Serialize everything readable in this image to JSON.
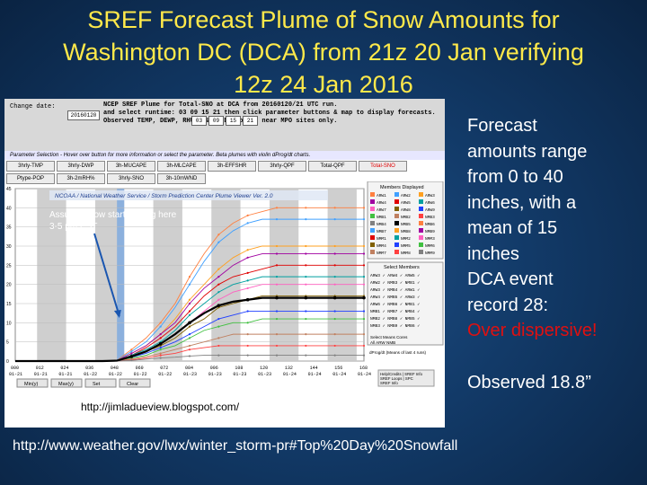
{
  "slide": {
    "title": "SREF Forecast Plume of Snow Amounts for\nWashington DC (DCA) from 21z 20 Jan verifying\n12z 24 Jan 2016",
    "bullets": [
      "Forecast",
      "amounts range",
      "from 0 to 40",
      "inches, with a",
      "mean of 15",
      "inches",
      "DCA event",
      "record 28:"
    ],
    "bullet_highlight": "Over dispersive!",
    "observed": "Observed 18.8”",
    "link": "http://www.weather.gov/lwx/winter_storm-pr#Top%20Day%20Snowfall",
    "source": "http://jimladueview.blogspot.com/"
  },
  "viewer": {
    "header": "NCEP SREF Plume for Total-SNO at DCA from 20160120/21 UTC run.\nand select runtime: 03 09 15 21 then click parameter buttons & map to display forecasts.\nObserved TEMP, DEWP, RHUM, & WIND plotted near MPO sites only.",
    "change_date_label": "Change date:",
    "date_value": "20160120",
    "runtimes": [
      "03",
      "09",
      "15",
      "21"
    ],
    "param_bar": "Parameter Selection - Hover over button for more information or select the parameter. Beta plumes with violin dProg/dt charts.",
    "tabs": [
      "3hrly-TMP",
      "3hrly-DWP",
      "3h-MUCAPE",
      "3h-MLCAPE",
      "3h-EFFSHR",
      "3hrly-QPF",
      "Total-QPF",
      "Total-SNO",
      "Ptype-POP",
      "3h-2mRH%",
      "3hrly-SNO",
      "3h-10mWND"
    ],
    "active_tab": "Total-SNO",
    "banner": "NCOAA / National Weather Service / Storm Prediction Center Plume Viewer Ver. 2.0",
    "annotation": [
      "Assume snow starts falling here",
      "3-5 pm EST"
    ],
    "members_title": "Members Displayed",
    "members": [
      "ARW1",
      "ARW2",
      "ARW3",
      "ARW4",
      "ARW5",
      "ARW6",
      "ARW7",
      "ARW8",
      "ARW9",
      "NMB1",
      "NMB2",
      "NMB3",
      "NMB4",
      "NMB5",
      "NMB6",
      "NMB7",
      "NMB8",
      "NMB9",
      "NMM1",
      "NMM2",
      "NMM3",
      "NMM4",
      "NMM5",
      "NMM6",
      "NMM7",
      "NMM8",
      "NMM9"
    ],
    "select_title": "Select Members",
    "select_rows": [
      "ARW3 ✓ ARW4 ✓ ARW5 ✓",
      "ARW2 ✓ NMB3 ✓ NMB1 ✓",
      "ARW3 ✓ NMB4 ✓ ARW1 ✓",
      "ARW4 ✓ NMB5 ✓ ARW3 ✓",
      "ARW6 ✓ NMB6 ✓ NMB1 ✓",
      "NMB1 ✓ NMB7 ✓ NMB4 ✓",
      "NMB2 ✓ NMB8 ✓ NMB5 ✓",
      "NMB3 ✓ NMB9 ✓ NMB6 ✓"
    ],
    "select_footer": [
      "Select Means  Cores",
      "All     ARW      NMB"
    ],
    "dprog": "dProg/dt (Means of last 4 runs)",
    "help": [
      "Help/Credits | SREF Info",
      "SREF Loops | SPC",
      "SREF Info"
    ],
    "buttons": [
      "Min(y)",
      "Max(y)",
      "Set",
      "Clear"
    ],
    "x_top": [
      "000",
      "012",
      "024",
      "036",
      "048",
      "060",
      "072",
      "084",
      "096",
      "108",
      "120",
      "132",
      "144",
      "156",
      "168"
    ],
    "x_bottom": [
      "01-21",
      "01-21",
      "01-21",
      "01-22",
      "01-22",
      "01-22",
      "01-22",
      "01-23",
      "01-23",
      "01-23",
      "01-23",
      "01-24",
      "01-24",
      "01-24",
      "01-24"
    ],
    "y_ticks": [
      "45",
      "40",
      "35",
      "30",
      "25",
      "20",
      "15",
      "10",
      "5",
      "0"
    ]
  },
  "chart_data": {
    "type": "line",
    "title": "",
    "xlabel": "",
    "ylabel": "",
    "ylim": [
      0,
      45
    ],
    "x": [
      0,
      6,
      12,
      18,
      24,
      30,
      36,
      42,
      48,
      54,
      60,
      66,
      72,
      78,
      84,
      90,
      96,
      102,
      108,
      114,
      120,
      126,
      132,
      138,
      144
    ],
    "series": [
      {
        "values": [
          0,
          0,
          0,
          0,
          0,
          0,
          0,
          0.2,
          3,
          6,
          10,
          15,
          22,
          28,
          33,
          36,
          38,
          39,
          40,
          40,
          40,
          40,
          40,
          40,
          40
        ],
        "color": "#ff8040"
      },
      {
        "values": [
          0,
          0,
          0,
          0,
          0,
          0,
          0,
          0.2,
          2.5,
          5,
          9,
          14,
          20,
          26,
          31,
          34,
          36,
          37,
          37,
          37,
          37,
          37,
          37,
          37,
          37
        ],
        "color": "#40a0ff"
      },
      {
        "values": [
          0,
          0,
          0,
          0,
          0,
          0,
          0,
          0.2,
          2,
          4,
          7,
          11,
          16,
          20,
          24,
          27,
          29,
          30,
          30,
          30,
          30,
          30,
          30,
          30,
          30
        ],
        "color": "#ffa020"
      },
      {
        "values": [
          0,
          0,
          0,
          0,
          0,
          0,
          0,
          0.1,
          2,
          4,
          7,
          10,
          15,
          19,
          22,
          25,
          27,
          28,
          28,
          28,
          28,
          28,
          28,
          28,
          28
        ],
        "color": "#a000a0"
      },
      {
        "values": [
          0,
          0,
          0,
          0,
          0,
          0,
          0,
          0.1,
          1.5,
          3.5,
          6,
          9,
          13,
          17,
          20,
          22,
          23,
          24,
          25,
          25,
          25,
          25,
          25,
          25,
          25
        ],
        "color": "#e00000"
      },
      {
        "values": [
          0,
          0,
          0,
          0,
          0,
          0,
          0,
          0.1,
          1.5,
          3,
          5,
          8,
          12,
          15,
          18,
          20,
          21,
          22,
          22,
          22,
          22,
          22,
          22,
          22,
          22
        ],
        "color": "#00a0a0"
      },
      {
        "values": [
          0,
          0,
          0,
          0,
          0,
          0,
          0,
          0.1,
          1,
          2.5,
          4.5,
          7,
          10,
          13,
          16,
          18,
          19,
          20,
          20,
          20,
          20,
          20,
          20,
          20,
          20
        ],
        "color": "#ff60c0"
      },
      {
        "values": [
          0,
          0,
          0,
          0,
          0,
          0,
          0,
          0.1,
          1,
          2.5,
          4,
          6,
          9,
          11,
          14,
          15,
          16,
          17,
          17,
          17,
          17,
          17,
          17,
          17,
          17
        ],
        "color": "#806000"
      },
      {
        "values": [
          0,
          0,
          0,
          0,
          0,
          0,
          0,
          0.1,
          1,
          2,
          3.5,
          5,
          7,
          9,
          11,
          12,
          13,
          13,
          13,
          13,
          13,
          13,
          13,
          13,
          13
        ],
        "color": "#2040ff"
      },
      {
        "values": [
          0,
          0,
          0,
          0,
          0,
          0,
          0,
          0.1,
          0.8,
          1.5,
          3,
          4,
          6,
          8,
          9,
          10,
          10,
          11,
          11,
          11,
          11,
          11,
          11,
          11,
          11
        ],
        "color": "#40c040"
      },
      {
        "values": [
          0,
          0,
          0,
          0,
          0,
          0,
          0,
          0.1,
          0.5,
          1.2,
          2,
          3,
          4,
          5,
          6,
          7,
          7,
          7,
          7,
          7,
          7,
          7,
          7,
          7,
          7
        ],
        "color": "#c08060"
      },
      {
        "values": [
          0,
          0,
          0,
          0,
          0,
          0,
          0,
          0,
          0.3,
          0.8,
          1.5,
          2,
          3,
          3.5,
          4,
          4,
          4,
          4,
          4,
          4,
          4,
          4,
          4,
          4,
          4
        ],
        "color": "#ff4040"
      },
      {
        "values": [
          0,
          0,
          0,
          0,
          0,
          0,
          0,
          0,
          0.2,
          0.5,
          0.8,
          1,
          1.3,
          1.5,
          1.5,
          1.5,
          1.5,
          1.5,
          1.5,
          1.5,
          1.5,
          1.5,
          1.5,
          1.5,
          1.5
        ],
        "color": "#808080"
      },
      {
        "values": [
          0,
          0,
          0,
          0,
          0,
          0,
          0,
          0.1,
          1.2,
          2.5,
          4.5,
          7,
          10,
          12.5,
          14.5,
          15.5,
          16,
          16.5,
          16.5,
          16.5,
          16.5,
          16.5,
          16.5,
          16.5,
          16.5
        ],
        "color": "#000000",
        "mean": true
      }
    ]
  }
}
